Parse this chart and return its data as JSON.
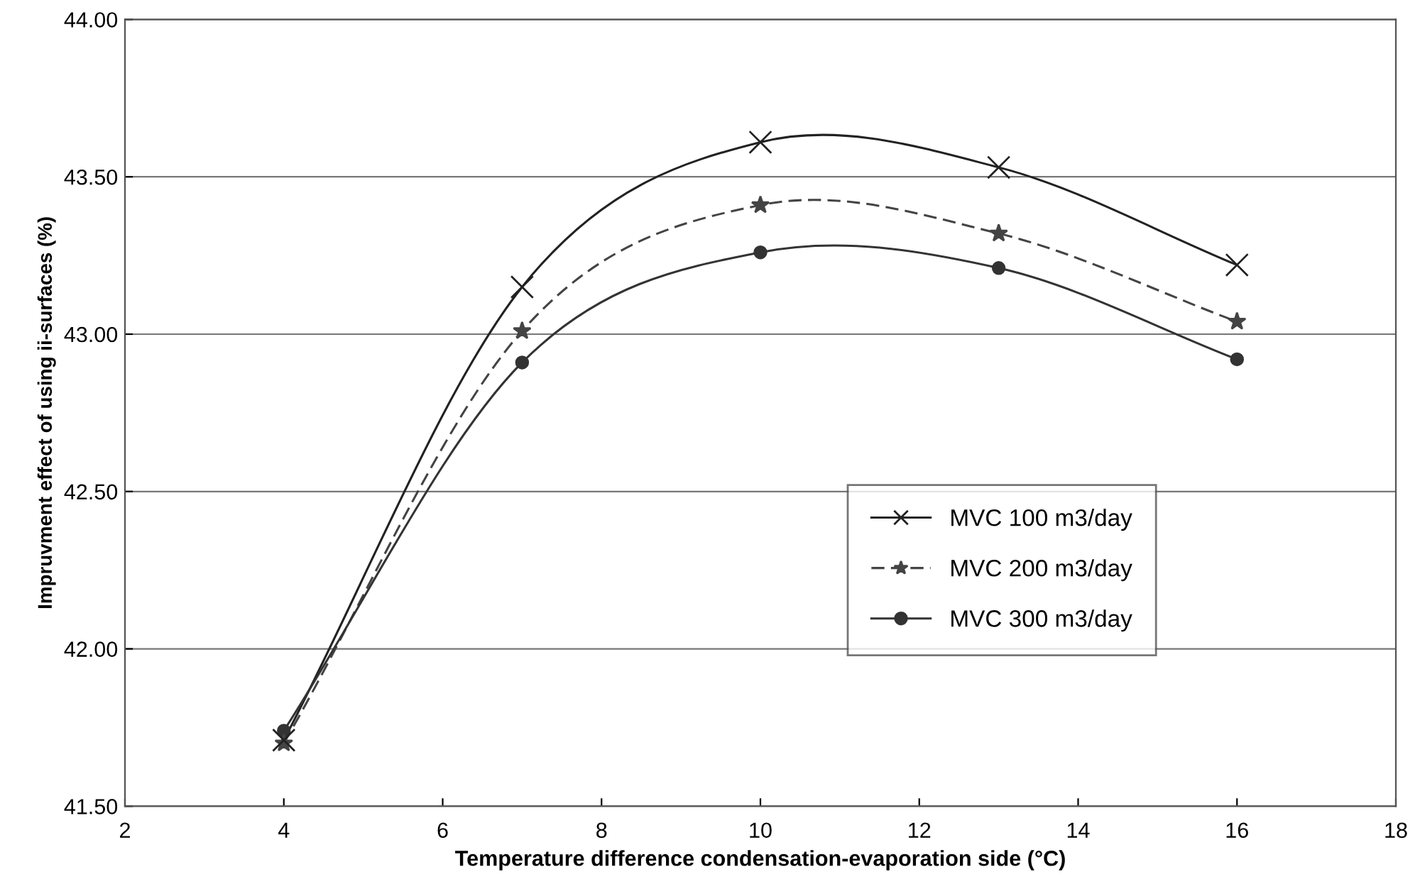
{
  "chart_data": {
    "type": "line",
    "xlabel": "Temperature difference condensation-evaporation side (°C)",
    "ylabel": "Impruvment effect of using ii-surfaces (%)",
    "x": [
      4,
      7,
      10,
      13,
      16
    ],
    "series": [
      {
        "name": "MVC 100 m3/day",
        "color": "#222222",
        "marker": "cross",
        "line_style": "solid",
        "values": [
          41.71,
          43.15,
          43.61,
          43.53,
          43.22
        ]
      },
      {
        "name": "MVC 200 m3/day",
        "color": "#444444",
        "marker": "star",
        "line_style": "dashed",
        "values": [
          41.7,
          43.01,
          43.41,
          43.32,
          43.04
        ]
      },
      {
        "name": "MVC 300 m3/day",
        "color": "#333333",
        "marker": "circle",
        "line_style": "solid",
        "values": [
          41.74,
          42.91,
          43.26,
          43.21,
          42.92
        ]
      }
    ],
    "xlim": [
      2,
      18
    ],
    "xticks": [
      2,
      4,
      6,
      8,
      10,
      12,
      14,
      16,
      18
    ],
    "ylim": [
      41.5,
      44.0
    ],
    "yticks": [
      {
        "value": 41.5,
        "label": "41.50"
      },
      {
        "value": 42.0,
        "label": "42.00"
      },
      {
        "value": 42.5,
        "label": "42.50"
      },
      {
        "value": 43.0,
        "label": "43.00"
      },
      {
        "value": 43.5,
        "label": "43.50"
      },
      {
        "value": 44.0,
        "label": "44.00"
      }
    ],
    "grid": "y",
    "legend": "center right"
  }
}
